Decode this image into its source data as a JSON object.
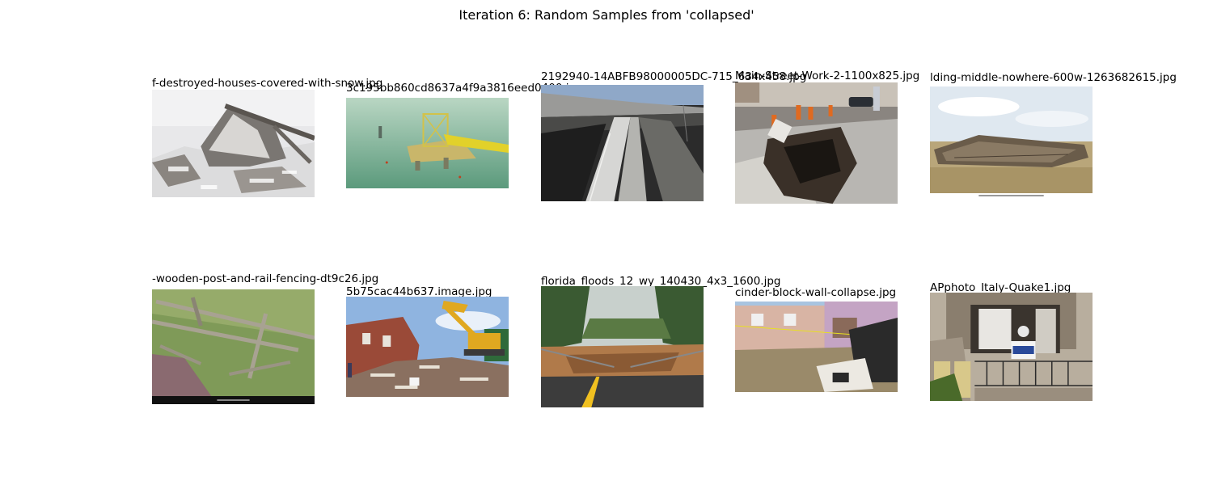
{
  "figure": {
    "title": "Iteration 6: Random Samples from 'collapsed'"
  },
  "samples": [
    {
      "caption": "f-destroyed-houses-covered-with-snow.jpg",
      "scene": "snow-covered-ruins-icon"
    },
    {
      "caption": "3c195bb860cd8637a4f9a3816eed0400.jpg",
      "scene": "offshore-platform-icon"
    },
    {
      "caption": "2192940-14ABFB98000005DC-715_634x458.jpg",
      "scene": "collapsed-overpass-icon"
    },
    {
      "caption": "Main-Street-Work-2-1100x825.jpg",
      "scene": "street-sinkhole-icon"
    },
    {
      "caption": "lding-middle-nowhere-600w-1263682615.jpg",
      "scene": "collapsed-barn-icon"
    },
    {
      "caption": "-wooden-post-and-rail-fencing-dt9c26.jpg",
      "scene": "broken-fence-icon"
    },
    {
      "caption": "5b75cac44b637.image.jpg",
      "scene": "demolition-excavator-icon"
    },
    {
      "caption": "florida_floods_12_wy_140430_4x3_1600.jpg",
      "scene": "washed-out-road-icon"
    },
    {
      "caption": "cinder-block-wall-collapse.jpg",
      "scene": "wall-collapse-icon"
    },
    {
      "caption": "APphoto_Italy-Quake1.jpg",
      "scene": "quake-damaged-balcony-icon"
    }
  ]
}
